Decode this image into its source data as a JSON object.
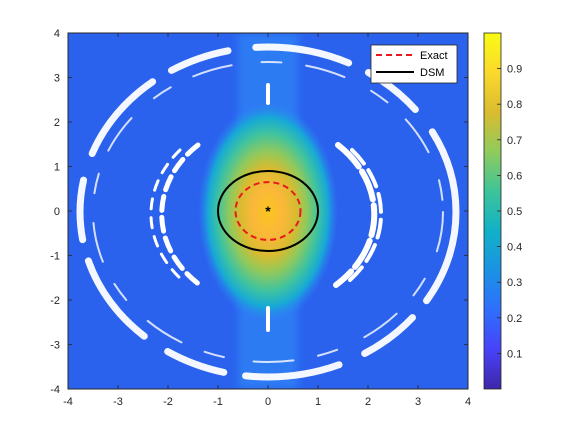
{
  "chart_data": {
    "type": "heatmap",
    "title": "",
    "xlabel": "",
    "ylabel": "",
    "xlim": [
      -4,
      4
    ],
    "ylim": [
      -4,
      4
    ],
    "x_ticks": [
      -4,
      -3,
      -2,
      -1,
      0,
      1,
      2,
      3,
      4
    ],
    "y_ticks": [
      -4,
      -3,
      -2,
      -1,
      0,
      1,
      2,
      3,
      4
    ],
    "colormap": "parula",
    "colorbar": {
      "range": [
        0.0,
        1.0
      ],
      "ticks": [
        "0.1",
        "0.2",
        "0.3",
        "0.4",
        "0.5",
        "0.6",
        "0.7",
        "0.8",
        "0.9"
      ],
      "colors": [
        "#3e26a8",
        "#4743f8",
        "#2f6ffd",
        "#1b92e4",
        "#12b1c7",
        "#3ec499",
        "#90cb5c",
        "#dabc2f",
        "#fbd92c",
        "#f9fb14"
      ]
    },
    "field": {
      "peak_value": 0.98,
      "peak_center": [
        0,
        0
      ],
      "background_value": 0.12
    },
    "series": [
      {
        "name": "Exact",
        "kind": "circle",
        "center": [
          0,
          0
        ],
        "radius": 0.65,
        "color": "#e8191c",
        "style": "dashed"
      },
      {
        "name": "DSM",
        "kind": "ellipse",
        "center": [
          0,
          0
        ],
        "radius_x": 1.0,
        "radius_y": 0.9,
        "color": "#000000",
        "style": "solid"
      }
    ],
    "marker": {
      "symbol": "*",
      "x": 0,
      "y": 0,
      "color": "#000000"
    },
    "legend": {
      "placement": "top-right"
    }
  }
}
